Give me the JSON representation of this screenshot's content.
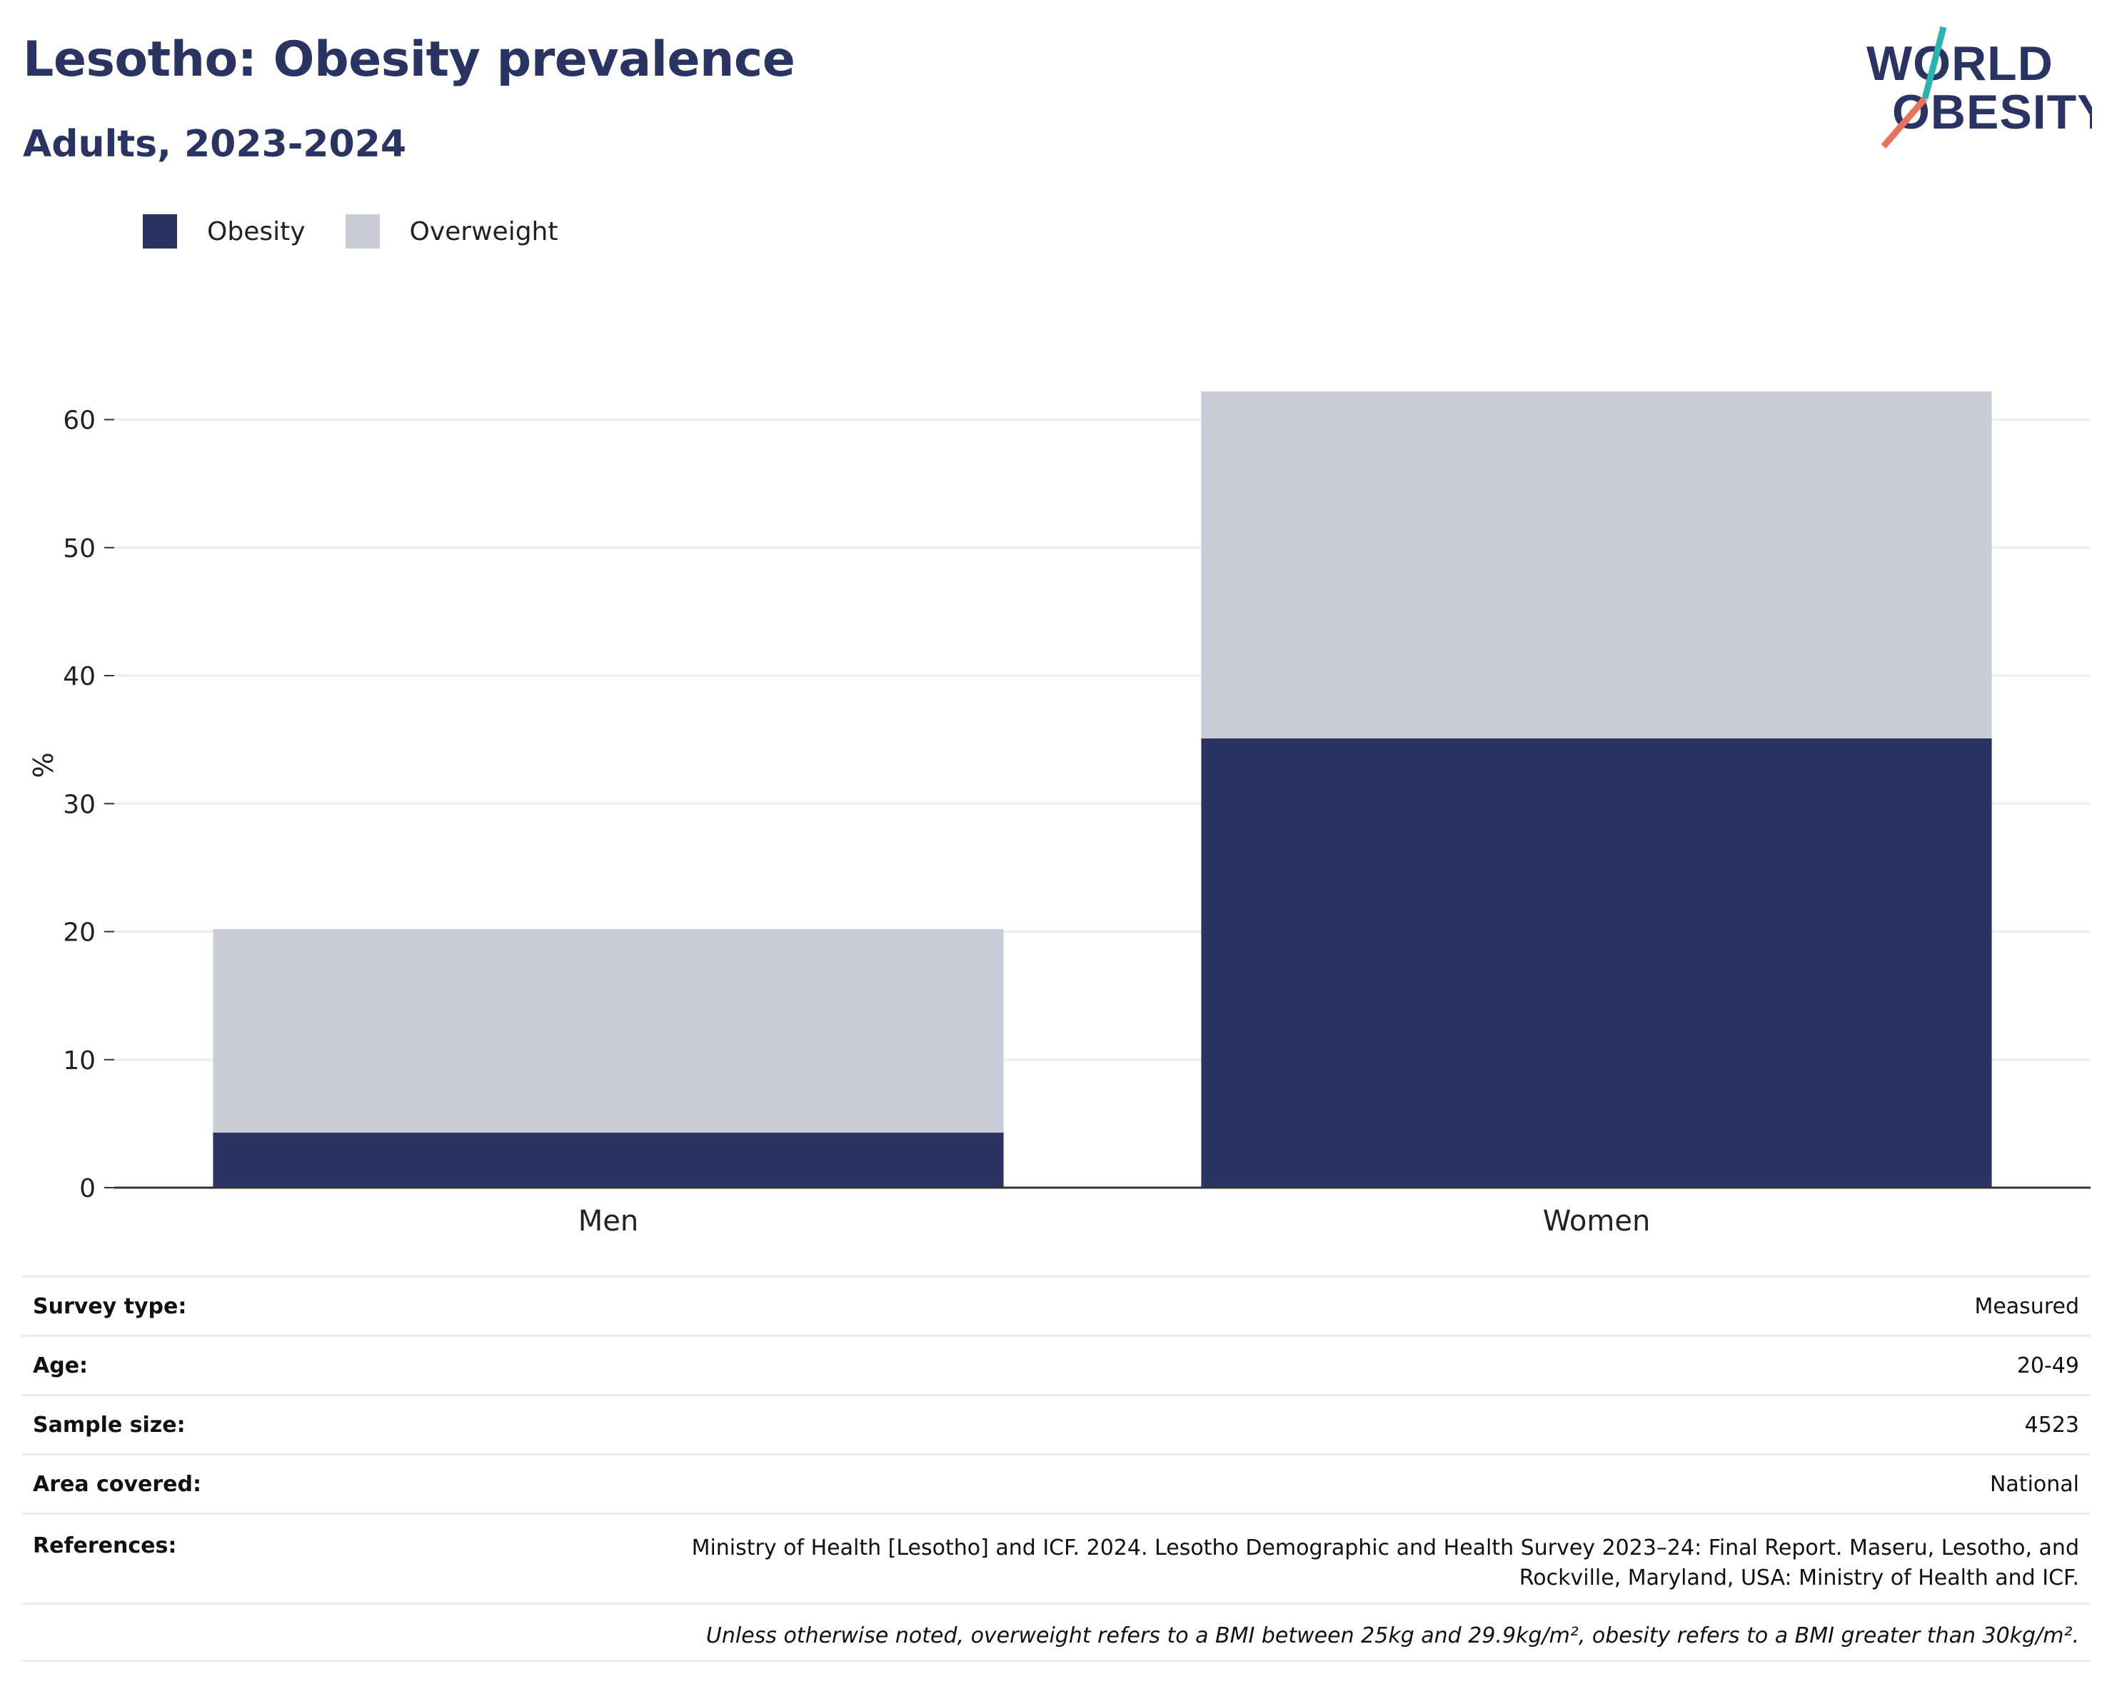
{
  "header": {
    "title": "Lesotho: Obesity prevalence",
    "subtitle": "Adults, 2023-2024"
  },
  "logo": {
    "line1": "WORLD",
    "line2": "OBESITY",
    "colors": {
      "text": "#293462",
      "accent_teal": "#2bb3b1",
      "accent_coral": "#e8735a"
    }
  },
  "legend": {
    "items": [
      {
        "label": "Obesity",
        "color": "#293462"
      },
      {
        "label": "Overweight",
        "color": "#cacdd8"
      }
    ]
  },
  "chart_data": {
    "type": "bar",
    "stacked": true,
    "categories": [
      "Men",
      "Women"
    ],
    "series": [
      {
        "name": "Obesity",
        "values": [
          4.3,
          35.1
        ],
        "color": "#293462"
      },
      {
        "name": "Overweight",
        "values": [
          15.9,
          27.1
        ],
        "color": "#cacdd8"
      }
    ],
    "ylabel": "%",
    "xlabel": "",
    "ylim": [
      0,
      66
    ],
    "yticks": [
      0,
      10,
      20,
      30,
      40,
      50,
      60
    ],
    "grid": true,
    "legend_position": "top-left"
  },
  "info": {
    "rows": [
      {
        "key": "Survey type:",
        "value": "Measured"
      },
      {
        "key": "Age:",
        "value": "20-49"
      },
      {
        "key": "Sample size:",
        "value": "4523"
      },
      {
        "key": "Area covered:",
        "value": "National"
      },
      {
        "key": "References:",
        "value_line1": "Ministry of Health [Lesotho] and ICF. 2024. Lesotho Demographic and Health Survey 2023–24: Final Report. Maseru, Lesotho, and",
        "value_line2": "Rockville, Maryland, USA: Ministry of Health and ICF."
      }
    ],
    "note": "Unless otherwise noted, overweight refers to a BMI between 25kg and 29.9kg/m², obesity refers to a BMI greater than 30kg/m²."
  }
}
